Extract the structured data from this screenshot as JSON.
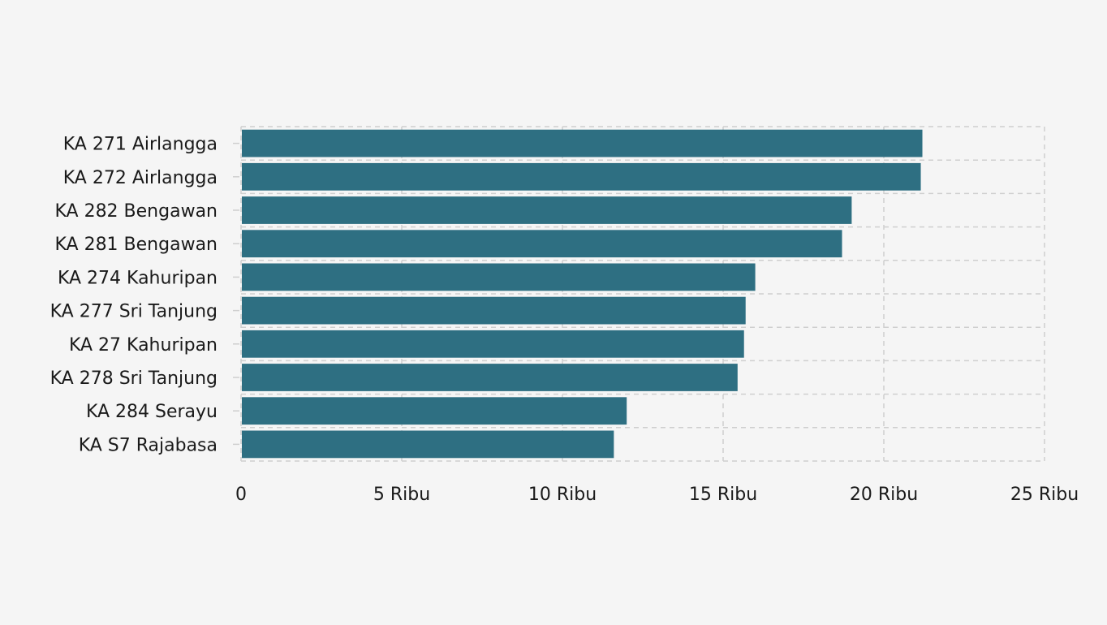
{
  "chart_data": {
    "type": "bar",
    "orientation": "horizontal",
    "categories": [
      "KA 271 Airlangga",
      "KA 272 Airlangga",
      "KA 282 Bengawan",
      "KA 281 Bengawan",
      "KA 274 Kahuripan",
      "KA 277 Sri Tanjung",
      "KA 27 Kahuripan",
      "KA 278 Sri Tanjung",
      "KA 284 Serayu",
      "KA S7 Rajabasa"
    ],
    "values": [
      21200,
      21150,
      19000,
      18700,
      16000,
      15700,
      15650,
      15450,
      12000,
      11600
    ],
    "xlim": [
      0,
      25000
    ],
    "xticks": [
      0,
      5000,
      10000,
      15000,
      20000,
      25000
    ],
    "xtick_labels": [
      "0",
      "5 Ribu",
      "10 Ribu",
      "15 Ribu",
      "20 Ribu",
      "25 Ribu"
    ],
    "title": "",
    "xlabel": "",
    "ylabel": "",
    "grid": true,
    "bar_color": "#2e6f82",
    "legend": "none"
  }
}
